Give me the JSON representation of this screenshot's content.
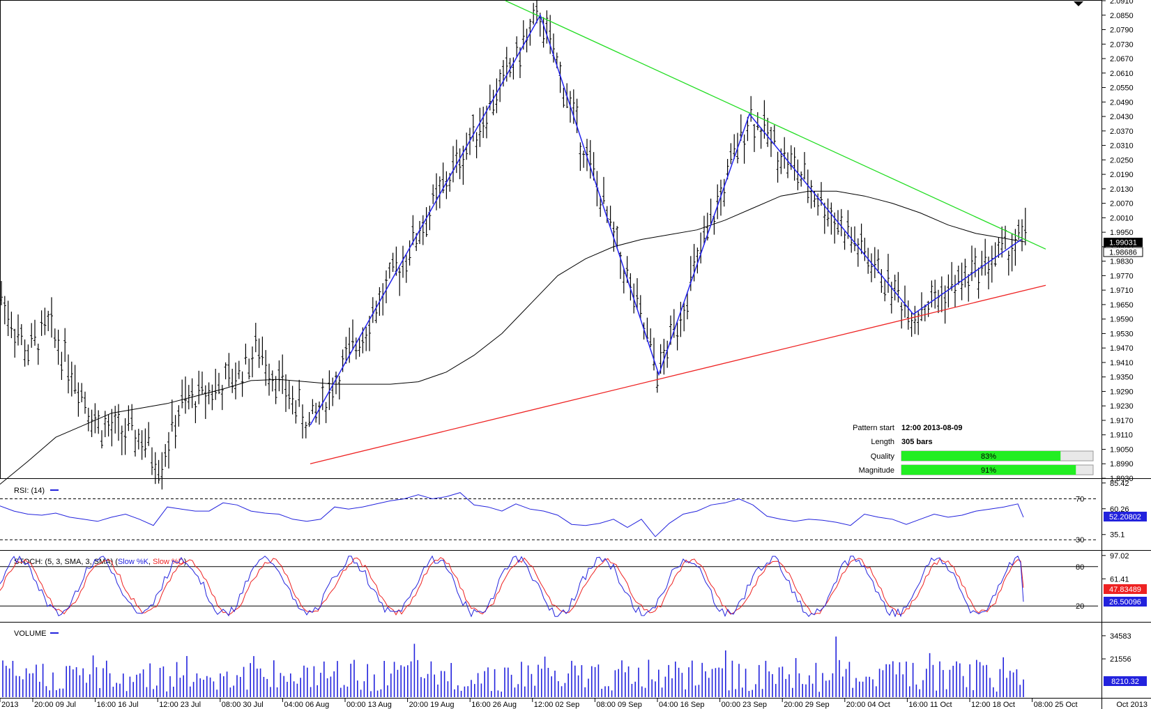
{
  "chart_data": [
    {
      "type": "candlestick",
      "panel": "price",
      "y_ticks": [
        "2.0910",
        "2.0850",
        "2.0790",
        "2.0730",
        "2.0670",
        "2.0610",
        "2.0550",
        "2.0490",
        "2.0430",
        "2.0370",
        "2.0310",
        "2.0250",
        "2.0190",
        "2.0130",
        "2.0070",
        "2.0010",
        "1.9950",
        "1.9890",
        "1.9830",
        "1.9770",
        "1.9710",
        "1.9650",
        "1.9590",
        "1.9530",
        "1.9470",
        "1.9410",
        "1.9350",
        "1.9290",
        "1.9230",
        "1.9170",
        "1.9110",
        "1.9050",
        "1.8990",
        "1.8930"
      ],
      "ylim": [
        1.893,
        2.091
      ],
      "last_price": "1.99031",
      "secondary_price": "1.98686",
      "moving_average": [
        [
          0,
          1.8905
        ],
        [
          40,
          1.9
        ],
        [
          80,
          1.91
        ],
        [
          120,
          1.915
        ],
        [
          160,
          1.92
        ],
        [
          200,
          1.922
        ],
        [
          240,
          1.924
        ],
        [
          280,
          1.927
        ],
        [
          320,
          1.93
        ],
        [
          360,
          1.9335
        ],
        [
          400,
          1.934
        ],
        [
          440,
          1.933
        ],
        [
          480,
          1.932
        ],
        [
          520,
          1.932
        ],
        [
          560,
          1.932
        ],
        [
          600,
          1.933
        ],
        [
          640,
          1.937
        ],
        [
          680,
          1.944
        ],
        [
          720,
          1.953
        ],
        [
          760,
          1.965
        ],
        [
          800,
          1.977
        ],
        [
          840,
          1.984
        ],
        [
          880,
          1.989
        ],
        [
          920,
          1.992
        ],
        [
          960,
          1.994
        ],
        [
          1000,
          1.996
        ],
        [
          1040,
          2.0
        ],
        [
          1080,
          2.005
        ],
        [
          1120,
          2.01
        ],
        [
          1160,
          2.012
        ],
        [
          1200,
          2.012
        ],
        [
          1240,
          2.01
        ],
        [
          1280,
          2.007
        ],
        [
          1320,
          2.003
        ],
        [
          1360,
          1.998
        ],
        [
          1400,
          1.9945
        ],
        [
          1440,
          1.9925
        ],
        [
          1470,
          1.991
        ]
      ],
      "pattern_zigzag": [
        [
          445,
          1.915
        ],
        [
          775,
          2.085
        ],
        [
          945,
          1.936
        ],
        [
          1075,
          2.044
        ],
        [
          1310,
          1.961
        ],
        [
          1465,
          1.992
        ]
      ],
      "resistance_line": {
        "from": [
          725,
          2.091
        ],
        "to": [
          1500,
          1.988
        ],
        "color": "#22dd22"
      },
      "support_line": {
        "from": [
          445,
          1.899
        ],
        "to": [
          1500,
          1.973
        ],
        "color": "#ee2222"
      },
      "pattern_info": {
        "pattern_start_label": "Pattern start",
        "pattern_start_value": "12:00 2013-08-09",
        "length_label": "Length",
        "length_value": "305 bars",
        "quality_label": "Quality",
        "quality_pct": 83,
        "quality_text": "83%",
        "magnitude_label": "Magnitude",
        "magnitude_pct": 91,
        "magnitude_text": "91%"
      }
    },
    {
      "type": "line",
      "panel": "rsi",
      "title": "RSI: (14)",
      "y_ticks": [
        "85.42",
        "60.26",
        "35.1"
      ],
      "levels": [
        "70",
        "30"
      ],
      "ylim": [
        22,
        88
      ],
      "current_value": "52.20802",
      "values": [
        [
          0,
          63
        ],
        [
          20,
          58
        ],
        [
          40,
          55
        ],
        [
          60,
          54
        ],
        [
          80,
          56
        ],
        [
          100,
          52
        ],
        [
          120,
          50
        ],
        [
          140,
          48
        ],
        [
          160,
          52
        ],
        [
          180,
          55
        ],
        [
          200,
          50
        ],
        [
          220,
          44
        ],
        [
          240,
          62
        ],
        [
          260,
          60
        ],
        [
          280,
          58
        ],
        [
          300,
          58
        ],
        [
          320,
          66
        ],
        [
          340,
          64
        ],
        [
          360,
          58
        ],
        [
          380,
          56
        ],
        [
          400,
          55
        ],
        [
          420,
          50
        ],
        [
          440,
          48
        ],
        [
          460,
          50
        ],
        [
          480,
          62
        ],
        [
          500,
          60
        ],
        [
          520,
          62
        ],
        [
          540,
          65
        ],
        [
          560,
          68
        ],
        [
          580,
          70
        ],
        [
          600,
          74
        ],
        [
          620,
          70
        ],
        [
          640,
          72
        ],
        [
          660,
          76
        ],
        [
          680,
          64
        ],
        [
          700,
          62
        ],
        [
          720,
          58
        ],
        [
          740,
          65
        ],
        [
          760,
          60
        ],
        [
          780,
          58
        ],
        [
          800,
          54
        ],
        [
          820,
          45
        ],
        [
          840,
          44
        ],
        [
          860,
          46
        ],
        [
          880,
          50
        ],
        [
          900,
          42
        ],
        [
          920,
          50
        ],
        [
          940,
          33
        ],
        [
          960,
          46
        ],
        [
          980,
          55
        ],
        [
          1000,
          58
        ],
        [
          1020,
          64
        ],
        [
          1040,
          66
        ],
        [
          1060,
          70
        ],
        [
          1080,
          64
        ],
        [
          1100,
          53
        ],
        [
          1120,
          50
        ],
        [
          1140,
          48
        ],
        [
          1160,
          50
        ],
        [
          1180,
          49
        ],
        [
          1200,
          47
        ],
        [
          1220,
          44
        ],
        [
          1240,
          55
        ],
        [
          1260,
          52
        ],
        [
          1280,
          50
        ],
        [
          1300,
          45
        ],
        [
          1320,
          50
        ],
        [
          1340,
          55
        ],
        [
          1360,
          52
        ],
        [
          1380,
          54
        ],
        [
          1400,
          58
        ],
        [
          1420,
          60
        ],
        [
          1440,
          62
        ],
        [
          1460,
          65
        ],
        [
          1468,
          52
        ]
      ]
    },
    {
      "type": "line",
      "panel": "stochastic",
      "title_prefix": "STOCH: (5, 3, SMA, 3, SMA)",
      "series": [
        {
          "name": "Slow %K",
          "color": "#2222dd"
        },
        {
          "name": "Slow %D",
          "color": "#ee2222"
        }
      ],
      "y_ticks": [
        "97.02",
        "61.41"
      ],
      "levels": [
        "80",
        "20"
      ],
      "ylim": [
        0,
        100
      ],
      "values_k": "26.50096",
      "values_d": "47.83489"
    },
    {
      "type": "bar",
      "panel": "volume",
      "title": "VOLUME",
      "y_ticks": [
        "34583",
        "21556"
      ],
      "current_value": "8210.32"
    }
  ],
  "x_ticks": [
    "2013",
    "20:00 09 Jul",
    "16:00 16 Jul",
    "12:00 23 Jul",
    "08:00 30 Jul",
    "04:00 06 Aug",
    "00:00 13 Aug",
    "20:00 19 Aug",
    "16:00 26 Aug",
    "12:00 02 Sep",
    "08:00 09 Sep",
    "04:00 16 Sep",
    "00:00 23 Sep",
    "20:00 29 Sep",
    "20:00 04 Oct",
    "16:00 11 Oct",
    "12:00 18 Oct",
    "08:00 25 Oct"
  ],
  "x_end_label": "Oct 2013",
  "colors": {
    "candles": "#000000",
    "ma": "#000000",
    "zigzag": "#2222ee",
    "resistance": "#22dd22",
    "support": "#ee2222",
    "bar_fill": "#22ee22",
    "rsi_badge": "#2222dd",
    "stoch_k_badge": "#2222dd",
    "stoch_d_badge": "#ee2222",
    "volume_badge": "#2222dd"
  }
}
